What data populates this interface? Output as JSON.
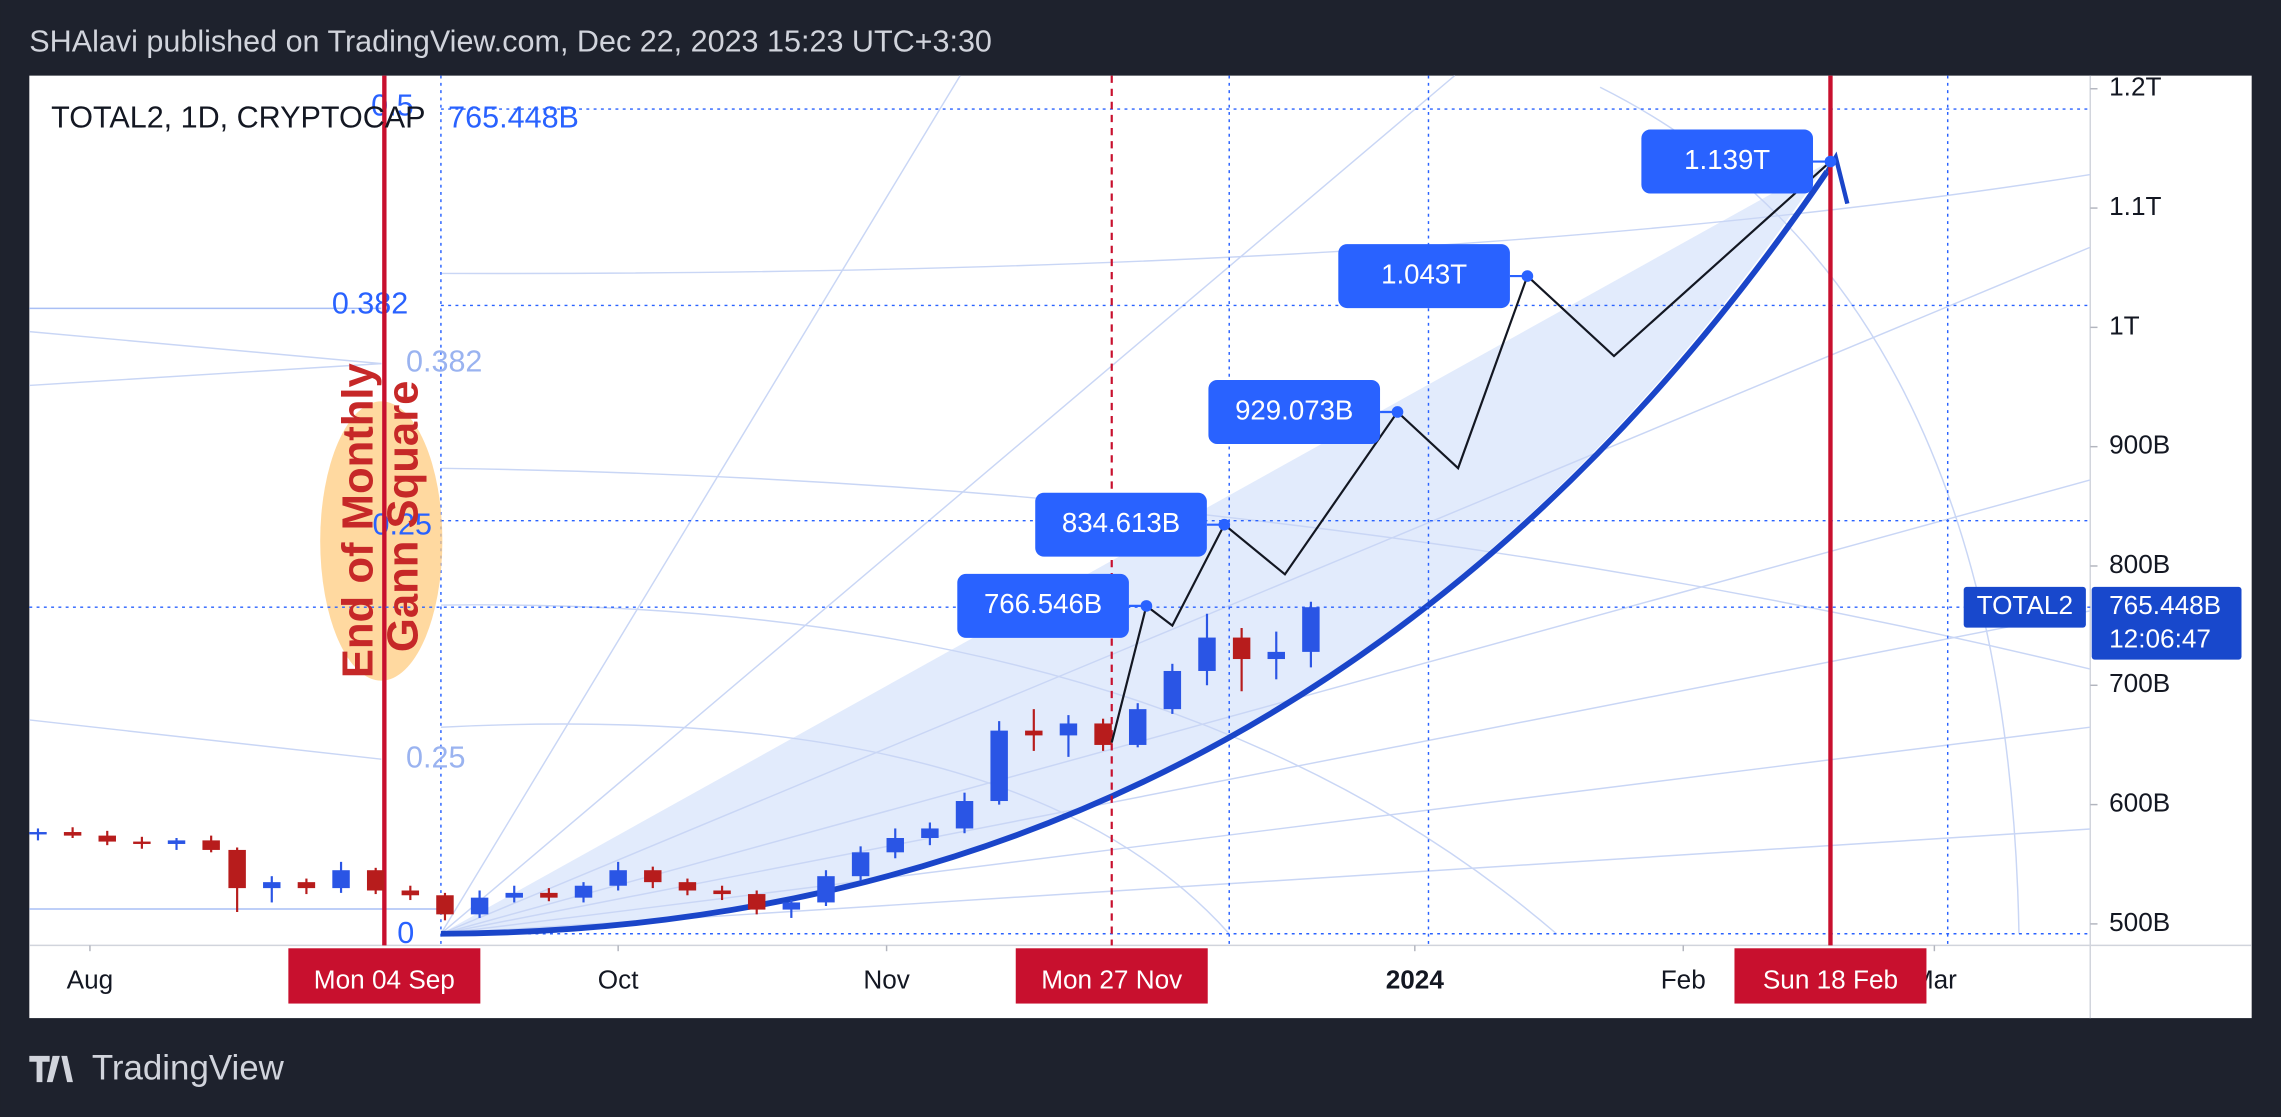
{
  "header": {
    "text": "SHAlavi published on TradingView.com, Dec 22, 2023 15:23 UTC+3:30"
  },
  "footer": {
    "brand": "TradingView"
  },
  "chart_data": {
    "type": "candlestick",
    "symbol_label": "TOTAL2, 1D, CRYPTOCAP",
    "symbol_tag": "TOTAL2",
    "last_price": 765.448,
    "last_price_label": "765.448B",
    "countdown": "12:06:47",
    "up_color": "#2a55e5",
    "down_color": "#b71c1c",
    "ylim": [
      482,
      1211
    ],
    "yticks": [
      {
        "value": 500,
        "label": "500B"
      },
      {
        "value": 600,
        "label": "600B"
      },
      {
        "value": 700,
        "label": "700B"
      },
      {
        "value": 800,
        "label": "800B"
      },
      {
        "value": 900,
        "label": "900B"
      },
      {
        "value": 1000,
        "label": "1T"
      },
      {
        "value": 1100,
        "label": "1.1T"
      },
      {
        "value": 1200,
        "label": "1.2T"
      }
    ],
    "xlim": [
      "2023-07-25",
      "2024-03-19"
    ],
    "xticks": [
      {
        "value": "2023-08-01",
        "label": "Aug"
      },
      {
        "value": "2023-10-01",
        "label": "Oct"
      },
      {
        "value": "2023-11-01",
        "label": "Nov"
      },
      {
        "value": "2024-01-01",
        "label": "2024"
      },
      {
        "value": "2024-02-01",
        "label": "Feb"
      },
      {
        "value": "2024-03-01",
        "label": "Mar"
      }
    ],
    "date_markers": [
      {
        "value": "2023-09-04",
        "label": "Mon 04 Sep"
      },
      {
        "value": "2023-11-27",
        "label": "Mon 27 Nov"
      },
      {
        "value": "2024-02-18",
        "label": "Sun 18 Feb"
      }
    ],
    "candles": [
      {
        "x": "2023-07-26",
        "o": 575,
        "h": 580,
        "l": 570,
        "c": 577
      },
      {
        "x": "2023-07-30",
        "o": 577,
        "h": 581,
        "l": 572,
        "c": 574
      },
      {
        "x": "2023-08-03",
        "o": 574,
        "h": 578,
        "l": 566,
        "c": 569
      },
      {
        "x": "2023-08-07",
        "o": 569,
        "h": 573,
        "l": 563,
        "c": 567
      },
      {
        "x": "2023-08-11",
        "o": 567,
        "h": 572,
        "l": 562,
        "c": 570
      },
      {
        "x": "2023-08-15",
        "o": 570,
        "h": 574,
        "l": 560,
        "c": 562
      },
      {
        "x": "2023-08-18",
        "o": 562,
        "h": 564,
        "l": 510,
        "c": 530
      },
      {
        "x": "2023-08-22",
        "o": 530,
        "h": 540,
        "l": 518,
        "c": 535
      },
      {
        "x": "2023-08-26",
        "o": 535,
        "h": 538,
        "l": 525,
        "c": 530
      },
      {
        "x": "2023-08-30",
        "o": 530,
        "h": 552,
        "l": 526,
        "c": 545
      },
      {
        "x": "2023-09-03",
        "o": 545,
        "h": 547,
        "l": 525,
        "c": 528
      },
      {
        "x": "2023-09-07",
        "o": 528,
        "h": 532,
        "l": 520,
        "c": 524
      },
      {
        "x": "2023-09-11",
        "o": 524,
        "h": 526,
        "l": 503,
        "c": 508
      },
      {
        "x": "2023-09-15",
        "o": 508,
        "h": 528,
        "l": 505,
        "c": 522
      },
      {
        "x": "2023-09-19",
        "o": 522,
        "h": 532,
        "l": 518,
        "c": 526
      },
      {
        "x": "2023-09-23",
        "o": 526,
        "h": 530,
        "l": 519,
        "c": 522
      },
      {
        "x": "2023-09-27",
        "o": 522,
        "h": 535,
        "l": 518,
        "c": 532
      },
      {
        "x": "2023-10-01",
        "o": 532,
        "h": 552,
        "l": 528,
        "c": 545
      },
      {
        "x": "2023-10-05",
        "o": 545,
        "h": 548,
        "l": 530,
        "c": 535
      },
      {
        "x": "2023-10-09",
        "o": 535,
        "h": 538,
        "l": 524,
        "c": 528
      },
      {
        "x": "2023-10-13",
        "o": 528,
        "h": 532,
        "l": 520,
        "c": 525
      },
      {
        "x": "2023-10-17",
        "o": 525,
        "h": 528,
        "l": 508,
        "c": 512
      },
      {
        "x": "2023-10-21",
        "o": 512,
        "h": 520,
        "l": 505,
        "c": 518
      },
      {
        "x": "2023-10-25",
        "o": 518,
        "h": 545,
        "l": 515,
        "c": 540
      },
      {
        "x": "2023-10-29",
        "o": 540,
        "h": 565,
        "l": 536,
        "c": 560
      },
      {
        "x": "2023-11-02",
        "o": 560,
        "h": 580,
        "l": 555,
        "c": 572
      },
      {
        "x": "2023-11-06",
        "o": 572,
        "h": 585,
        "l": 566,
        "c": 580
      },
      {
        "x": "2023-11-10",
        "o": 580,
        "h": 610,
        "l": 576,
        "c": 603
      },
      {
        "x": "2023-11-14",
        "o": 603,
        "h": 670,
        "l": 600,
        "c": 662
      },
      {
        "x": "2023-11-18",
        "o": 662,
        "h": 680,
        "l": 645,
        "c": 658
      },
      {
        "x": "2023-11-22",
        "o": 658,
        "h": 675,
        "l": 640,
        "c": 668
      },
      {
        "x": "2023-11-26",
        "o": 668,
        "h": 672,
        "l": 645,
        "c": 650
      },
      {
        "x": "2023-11-30",
        "o": 650,
        "h": 685,
        "l": 648,
        "c": 680
      },
      {
        "x": "2023-12-04",
        "o": 680,
        "h": 718,
        "l": 676,
        "c": 712
      },
      {
        "x": "2023-12-08",
        "o": 712,
        "h": 760,
        "l": 700,
        "c": 740
      },
      {
        "x": "2023-12-12",
        "o": 740,
        "h": 748,
        "l": 695,
        "c": 722
      },
      {
        "x": "2023-12-16",
        "o": 722,
        "h": 745,
        "l": 705,
        "c": 728
      },
      {
        "x": "2023-12-20",
        "o": 728,
        "h": 770,
        "l": 715,
        "c": 765.448
      }
    ],
    "projection": {
      "x": [
        "2023-11-27",
        "2023-12-01",
        "2023-12-04",
        "2023-12-10",
        "2023-12-17",
        "2023-12-30",
        "2024-01-06",
        "2024-01-14",
        "2024-01-24",
        "2024-02-18"
      ],
      "values": [
        652,
        766.546,
        750,
        834.613,
        793,
        929.073,
        882,
        1043,
        976,
        1139
      ],
      "value_labels": [
        null,
        "766.546B",
        null,
        "834.613B",
        null,
        "929.073B",
        null,
        "1.043T",
        null,
        "1.139T"
      ]
    },
    "gann_labels": [
      "0.5",
      "0.382",
      "0.382",
      "0.25",
      "0.25",
      "0"
    ],
    "annotation": [
      "End of Monthly",
      "Gann Square"
    ]
  }
}
